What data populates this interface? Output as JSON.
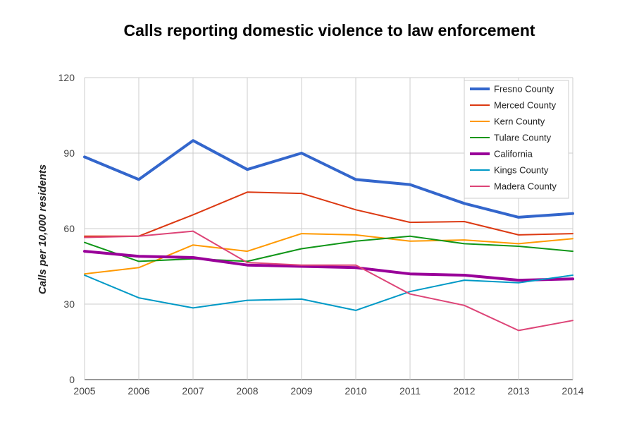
{
  "chart_data": {
    "type": "line",
    "title": "Calls reporting domestic violence to law enforcement",
    "ylabel": "Calls per 10,000 residents",
    "xlabel": "",
    "x": [
      "2005",
      "2006",
      "2007",
      "2008",
      "2009",
      "2010",
      "2011",
      "2012",
      "2013",
      "2014"
    ],
    "ylim": [
      0,
      120
    ],
    "yticks": [
      0,
      30,
      60,
      90,
      120
    ],
    "grid": true,
    "legend": "top-right",
    "series": [
      {
        "name": "Fresno County",
        "color": "#3366cc",
        "width": 4,
        "values": [
          88.5,
          79.5,
          95,
          83.5,
          90,
          79.5,
          77.5,
          70,
          64.5,
          66
        ]
      },
      {
        "name": "Merced County",
        "color": "#dc3912",
        "width": 2,
        "values": [
          57,
          57,
          65.5,
          74.5,
          74,
          67.5,
          62.5,
          62.8,
          57.5,
          58
        ]
      },
      {
        "name": "Kern County",
        "color": "#ff9900",
        "width": 2,
        "values": [
          42,
          44.5,
          53.5,
          51,
          58,
          57.5,
          55,
          55.5,
          54,
          56
        ]
      },
      {
        "name": "Tulare County",
        "color": "#109618",
        "width": 2,
        "values": [
          54.5,
          47,
          48,
          47,
          52,
          55,
          57,
          54,
          53,
          51
        ]
      },
      {
        "name": "California",
        "color": "#990099",
        "width": 4,
        "values": [
          51,
          49,
          48.5,
          45.5,
          45,
          44.5,
          42,
          41.5,
          39.5,
          40
        ]
      },
      {
        "name": "Kings County",
        "color": "#0099c6",
        "width": 2,
        "values": [
          41.5,
          32.5,
          28.5,
          31.5,
          32,
          27.5,
          35,
          39.5,
          38.5,
          41.5
        ]
      },
      {
        "name": "Madera County",
        "color": "#dd4477",
        "width": 2,
        "values": [
          56.5,
          57,
          59,
          46.5,
          45.5,
          45.5,
          34,
          29.5,
          19.5,
          23.5
        ]
      }
    ]
  }
}
